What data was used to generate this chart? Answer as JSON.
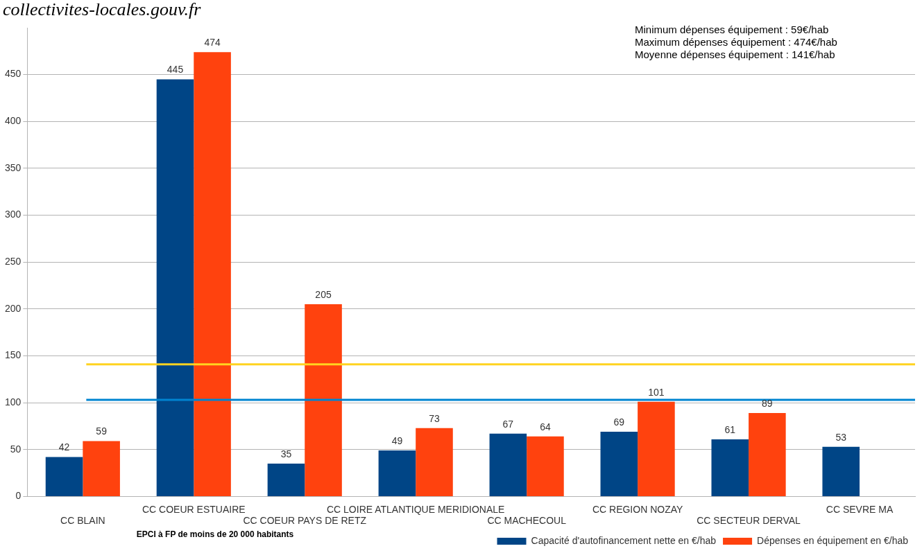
{
  "chart_data": {
    "type": "bar",
    "xlabel": "EPCI à FP de moins de 20 000 habitants",
    "categories": [
      "CC BLAIN",
      "CC COEUR ESTUAIRE",
      "CC COEUR PAYS DE RETZ",
      "CC LOIRE ATLANTIQUE MERIDIONALE",
      "CC MACHECOUL",
      "CC REGION NOZAY",
      "CC SECTEUR DERVAL",
      "CC SEVRE MA"
    ],
    "series": [
      {
        "name": "Capacité d'autofinancement nette en €/hab",
        "color": "#004586",
        "values": [
          42,
          445,
          35,
          49,
          67,
          69,
          61,
          53
        ]
      },
      {
        "name": "Dépenses en équipement en €/hab",
        "color": "#ff420e",
        "values": [
          59,
          474,
          205,
          73,
          64,
          101,
          89,
          null
        ]
      }
    ],
    "ylim": [
      0,
      500
    ],
    "yticks": [
      0,
      50,
      100,
      150,
      200,
      250,
      300,
      350,
      400,
      450
    ],
    "grid": "y",
    "legend": "bottom",
    "data_labels": true,
    "ref_lines": [
      {
        "axis": "y",
        "value": 141,
        "color": "#ffd320"
      },
      {
        "axis": "y",
        "value": 103,
        "color": "#0084d1"
      }
    ],
    "annotations": [
      "collectivites-locales.gouv.fr",
      "Minimum dépenses équipement : 59€/hab",
      "Maximum dépenses équipement : 474€/hab",
      "Moyenne dépenses équipement : 141€/hab"
    ]
  }
}
